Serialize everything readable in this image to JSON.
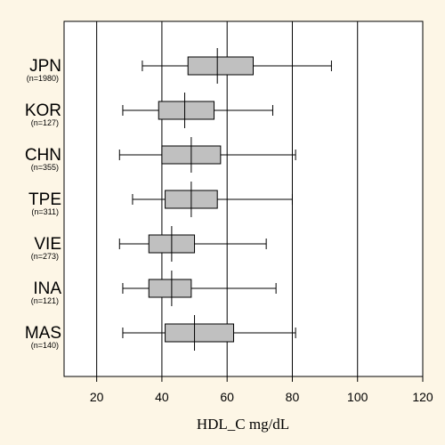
{
  "chart_data": {
    "type": "boxplot",
    "xlabel": "HDL_C  mg/dL",
    "xlim": [
      10,
      120
    ],
    "xticks": [
      20,
      40,
      60,
      80,
      100,
      120
    ],
    "grid": true,
    "categories": [
      {
        "code": "JPN",
        "n_label": "(n=1980)",
        "whisker_low": 34,
        "q1": 48,
        "median": 57,
        "q3": 68,
        "whisker_high": 92
      },
      {
        "code": "KOR",
        "n_label": "(n=127)",
        "whisker_low": 28,
        "q1": 39,
        "median": 47,
        "q3": 56,
        "whisker_high": 74
      },
      {
        "code": "CHN",
        "n_label": "(n=355)",
        "whisker_low": 27,
        "q1": 40,
        "median": 49,
        "q3": 58,
        "whisker_high": 81
      },
      {
        "code": "TPE",
        "n_label": "(n=311)",
        "whisker_low": 31,
        "q1": 41,
        "median": 49,
        "q3": 57,
        "whisker_high": 80
      },
      {
        "code": "VIE",
        "n_label": "(n=273)",
        "whisker_low": 27,
        "q1": 36,
        "median": 43,
        "q3": 50,
        "whisker_high": 72
      },
      {
        "code": "INA",
        "n_label": "(n=121)",
        "whisker_low": 28,
        "q1": 36,
        "median": 43,
        "q3": 49,
        "whisker_high": 75
      },
      {
        "code": "MAS",
        "n_label": "(n=140)",
        "whisker_low": 28,
        "q1": 41,
        "median": 50,
        "q3": 62,
        "whisker_high": 81
      }
    ]
  },
  "colors": {
    "background": "#fdf6e6",
    "plot_area": "#ffffff",
    "box_fill": "#c0c0c0",
    "line": "#000000"
  }
}
